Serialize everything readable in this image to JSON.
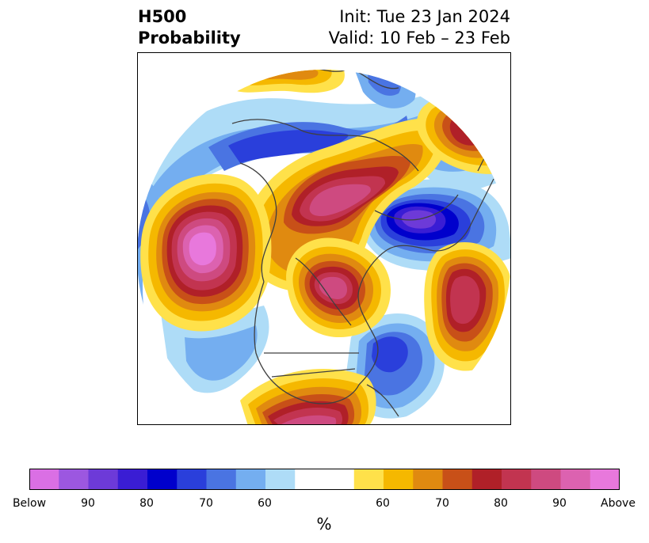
{
  "title": {
    "variable": "H500",
    "product": "Probability",
    "init": "Init: Tue 23 Jan 2024",
    "valid": "Valid: 10 Feb – 23 Feb"
  },
  "colorbar": {
    "unit": "%",
    "ticks": [
      "Below",
      "90",
      "80",
      "70",
      "60",
      "60",
      "70",
      "80",
      "90",
      "Above"
    ],
    "colors": [
      "#da6fe4",
      "#9c57e0",
      "#6d3ad8",
      "#3a1dd4",
      "#0000cc",
      "#2a3fdb",
      "#4a74e2",
      "#74aef0",
      "#aedcf7",
      "#ffffff",
      "#ffffff",
      "#ffe14a",
      "#f5b800",
      "#e08a10",
      "#c85018",
      "#b02028",
      "#c23450",
      "#ce4a80",
      "#dc62b0",
      "#e878dc"
    ]
  }
}
